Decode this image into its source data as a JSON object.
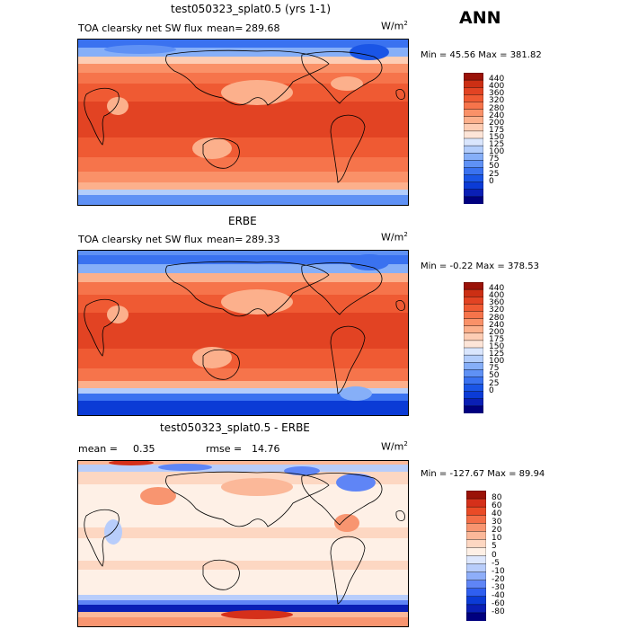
{
  "season": "ANN",
  "colors": {
    "abs": [
      "#00007f",
      "#0a1fb5",
      "#0b3bd6",
      "#1a55e6",
      "#3a72f0",
      "#5f91f5",
      "#86aff8",
      "#b3cdfb",
      "#dae6fd",
      "#fde5d8",
      "#fdcdb4",
      "#fcb08c",
      "#fa9168",
      "#f6744b",
      "#ef5a33",
      "#e24323",
      "#cc2f14",
      "#9a1208"
    ],
    "diff": [
      "#00007f",
      "#0a1fb5",
      "#0b3bd6",
      "#2f5ff0",
      "#5f85f6",
      "#8eaef9",
      "#b8cdfb",
      "#dde7fd",
      "#fef0e6",
      "#fdd7c2",
      "#fbb899",
      "#f89570",
      "#f46e47",
      "#ea4b26",
      "#d5301a",
      "#9a1208"
    ]
  },
  "panels": [
    {
      "title": "test050323_splat0.5 (yrs 1-1)",
      "variable": "TOA clearsky net SW flux",
      "mean_label": "mean=",
      "mean": "289.68",
      "units_base": "W/m",
      "units_exp": "2",
      "min_max": "Min =  45.56 Max = 381.82",
      "colorbar_labels": [
        "440",
        "400",
        "360",
        "320",
        "280",
        "240",
        "200",
        "175",
        "150",
        "125",
        "100",
        "75",
        "50",
        "25",
        "0"
      ]
    },
    {
      "title": "ERBE",
      "variable": "TOA clearsky net SW flux",
      "mean_label": "mean=",
      "mean": "289.33",
      "units_base": "W/m",
      "units_exp": "2",
      "min_max": "Min =  -0.22 Max = 378.53",
      "colorbar_labels": [
        "440",
        "400",
        "360",
        "320",
        "280",
        "240",
        "200",
        "175",
        "150",
        "125",
        "100",
        "75",
        "50",
        "25",
        "0"
      ]
    },
    {
      "title": "test050323_splat0.5 - ERBE",
      "mean_label": "mean =",
      "mean": "0.35",
      "rmse_label": "rmse =",
      "rmse": "14.76",
      "units_base": "W/m",
      "units_exp": "2",
      "min_max": "Min = -127.67 Max =  89.94",
      "colorbar_labels": [
        "80",
        "60",
        "40",
        "30",
        "20",
        "10",
        "5",
        "0",
        "-5",
        "-10",
        "-20",
        "-30",
        "-40",
        "-60",
        "-80"
      ]
    }
  ]
}
